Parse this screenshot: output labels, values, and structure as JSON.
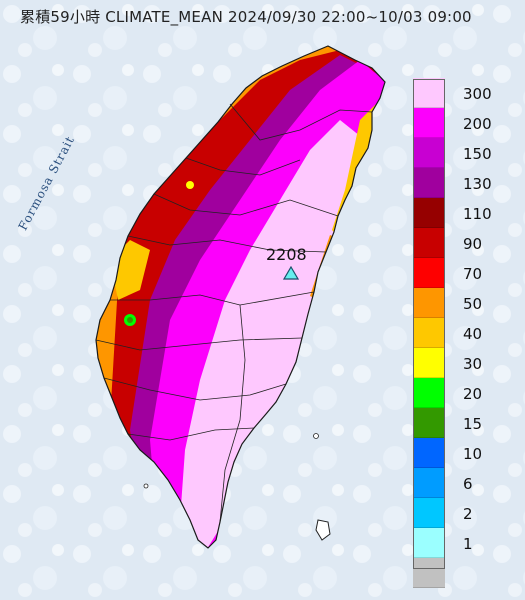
{
  "map": {
    "title": "累積59小時 CLIMATE_MEAN 2024/09/30 22:00~10/03 09:00",
    "strait_label": "Formosa Strait",
    "peak_value": "2208",
    "sea_color": "#dfe9f3",
    "border_color": "#222222"
  },
  "legend": {
    "items": [
      {
        "label": "300",
        "color": "#fec8fe"
      },
      {
        "label": "200",
        "color": "#fc00fc"
      },
      {
        "label": "150",
        "color": "#c800d2"
      },
      {
        "label": "130",
        "color": "#a0009e"
      },
      {
        "label": "110",
        "color": "#960000"
      },
      {
        "label": "90",
        "color": "#c80000"
      },
      {
        "label": "70",
        "color": "#fe0000"
      },
      {
        "label": "50",
        "color": "#fe9600"
      },
      {
        "label": "40",
        "color": "#fec800"
      },
      {
        "label": "30",
        "color": "#ffff00"
      },
      {
        "label": "20",
        "color": "#00ff00"
      },
      {
        "label": "15",
        "color": "#339900"
      },
      {
        "label": "10",
        "color": "#0066ff"
      },
      {
        "label": "6",
        "color": "#009cff"
      },
      {
        "label": "2",
        "color": "#00c7ff"
      },
      {
        "label": "1",
        "color": "#9bffff"
      },
      {
        "label": "",
        "color": "#c1c1c1"
      }
    ]
  }
}
